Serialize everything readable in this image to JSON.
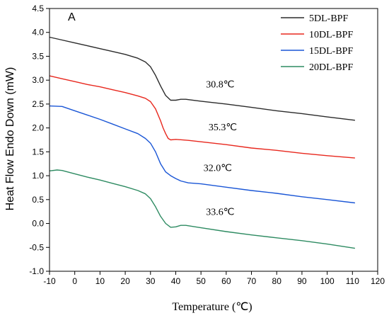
{
  "chart_data": {
    "type": "line",
    "panel_label": "A",
    "xlabel": "Temperature (℃)",
    "ylabel": "Heat Flow Endo Down (mW)",
    "xlim": [
      -10,
      120
    ],
    "ylim": [
      -1.0,
      4.5
    ],
    "xticks": [
      "-10",
      "0",
      "10",
      "20",
      "30",
      "40",
      "50",
      "60",
      "70",
      "80",
      "90",
      "100",
      "110",
      "120"
    ],
    "yticks": [
      "-1.0",
      "-0.5",
      "0.0",
      "0.5",
      "1.0",
      "1.5",
      "2.0",
      "2.5",
      "3.0",
      "3.5",
      "4.0",
      "4.5"
    ],
    "legend_position": "top-right",
    "series": [
      {
        "name": "5DL-BPF",
        "color": "#2b2b2b",
        "x": [
          -10,
          -5,
          0,
          5,
          10,
          15,
          20,
          25,
          28,
          30,
          32,
          34,
          36,
          38,
          40,
          42,
          44,
          50,
          60,
          70,
          80,
          90,
          100,
          111
        ],
        "y": [
          3.9,
          3.84,
          3.78,
          3.72,
          3.66,
          3.6,
          3.54,
          3.46,
          3.38,
          3.28,
          3.1,
          2.88,
          2.68,
          2.58,
          2.58,
          2.6,
          2.6,
          2.56,
          2.5,
          2.43,
          2.36,
          2.3,
          2.23,
          2.16
        ]
      },
      {
        "name": "10DL-BPF",
        "color": "#e8281e",
        "x": [
          -10,
          -5,
          0,
          5,
          10,
          15,
          20,
          25,
          28,
          30,
          32,
          34,
          35,
          36,
          37,
          38,
          40,
          45,
          50,
          60,
          70,
          80,
          90,
          100,
          111
        ],
        "y": [
          3.09,
          3.03,
          2.97,
          2.91,
          2.86,
          2.8,
          2.74,
          2.67,
          2.62,
          2.55,
          2.4,
          2.15,
          2.0,
          1.88,
          1.78,
          1.75,
          1.76,
          1.74,
          1.71,
          1.65,
          1.58,
          1.53,
          1.47,
          1.42,
          1.37
        ]
      },
      {
        "name": "15DL-BPF",
        "color": "#1a56d6",
        "x": [
          -10,
          -5,
          0,
          5,
          10,
          15,
          20,
          25,
          28,
          30,
          32,
          34,
          36,
          38,
          40,
          42,
          45,
          50,
          60,
          70,
          80,
          90,
          100,
          111
        ],
        "y": [
          2.46,
          2.45,
          2.36,
          2.27,
          2.18,
          2.08,
          1.98,
          1.88,
          1.78,
          1.68,
          1.5,
          1.25,
          1.08,
          1.0,
          0.94,
          0.89,
          0.85,
          0.83,
          0.76,
          0.69,
          0.63,
          0.56,
          0.5,
          0.43
        ]
      },
      {
        "name": "20DL-BPF",
        "color": "#2e8b62",
        "x": [
          -10,
          -7,
          -5,
          0,
          5,
          10,
          15,
          20,
          25,
          28,
          30,
          32,
          34,
          36,
          38,
          40,
          42,
          44,
          50,
          60,
          70,
          80,
          90,
          100,
          111
        ],
        "y": [
          1.1,
          1.12,
          1.11,
          1.04,
          0.97,
          0.91,
          0.84,
          0.77,
          0.69,
          0.62,
          0.52,
          0.35,
          0.15,
          0.0,
          -0.08,
          -0.07,
          -0.04,
          -0.04,
          -0.09,
          -0.17,
          -0.24,
          -0.3,
          -0.36,
          -0.43,
          -0.52
        ]
      }
    ],
    "annotations": [
      {
        "text": "30.8℃",
        "x": 52,
        "y": 2.85
      },
      {
        "text": "35.3℃",
        "x": 53,
        "y": 1.95
      },
      {
        "text": "32.0℃",
        "x": 51,
        "y": 1.1
      },
      {
        "text": "33.6℃",
        "x": 52,
        "y": 0.18
      }
    ]
  }
}
